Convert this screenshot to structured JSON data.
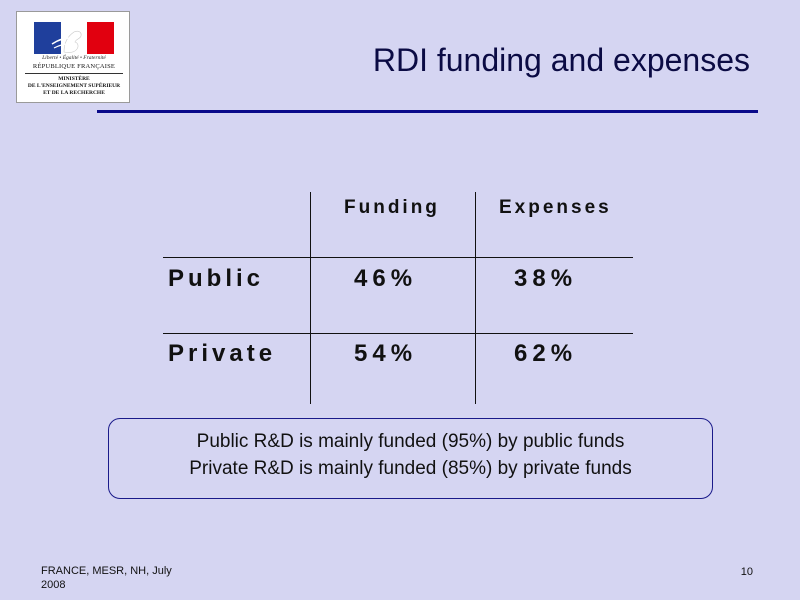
{
  "logo": {
    "motto": "Liberté • Égalité • Fraternité",
    "republic": "RÉPUBLIQUE FRANÇAISE",
    "ministry_line1": "MINISTÈRE",
    "ministry_line2": "DE L'ENSEIGNEMENT SUPÉRIEUR",
    "ministry_line3": "ET DE LA RECHERCHE",
    "colors": {
      "blue": "#1f3f9c",
      "white": "#ffffff",
      "red": "#e1000f"
    }
  },
  "title": "RDI funding and expenses",
  "table": {
    "headers": [
      "Funding",
      "Expenses"
    ],
    "rows": [
      {
        "label": "Public",
        "funding": "46%",
        "expenses": "38%"
      },
      {
        "label": "Private",
        "funding": "54%",
        "expenses": "62%"
      }
    ]
  },
  "note": {
    "line1": "Public R&D is mainly funded (95%) by public funds",
    "line2": "Private R&D is mainly funded (85%) by private funds"
  },
  "footer": {
    "text_line1": "FRANCE, MESR, NH, July",
    "text_line2": "2008",
    "page_number": "10"
  },
  "colors": {
    "background": "#d5d5f2",
    "title": "#0b0b44",
    "title_rule": "#0a0a8a"
  }
}
